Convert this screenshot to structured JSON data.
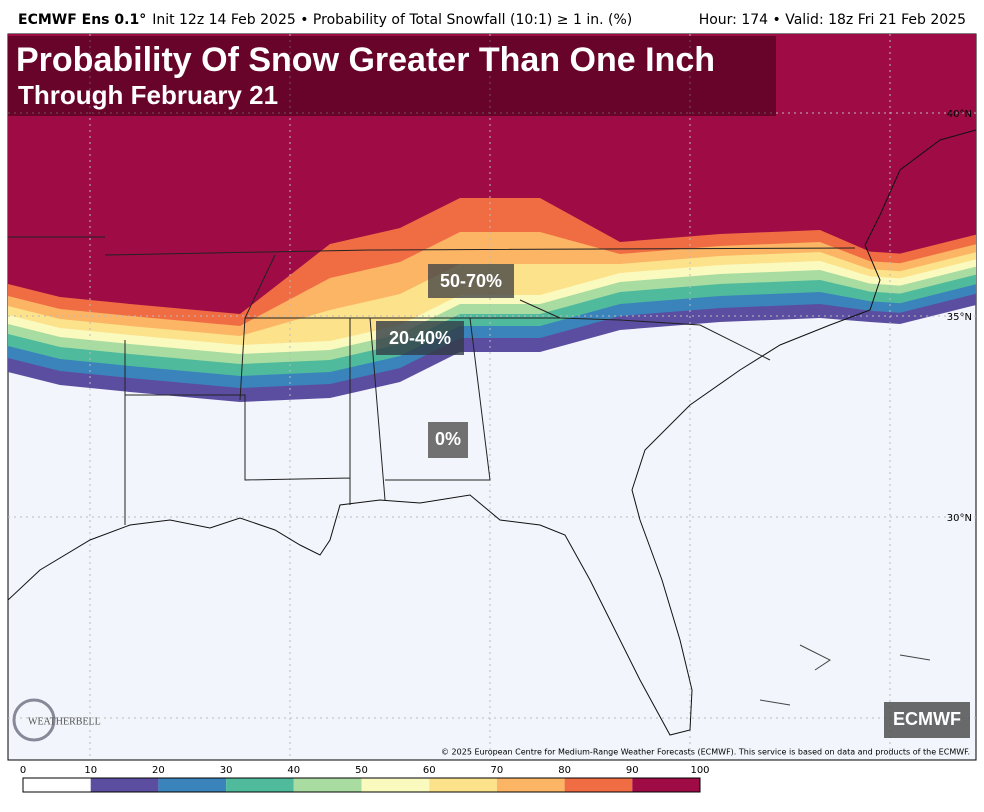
{
  "header": {
    "model": "ECMWF Ens 0.1°",
    "description": "Init 12z 14 Feb 2025 • Probability of Total Snowfall (10:1) ≥ 1 in. (%)",
    "valid": "Hour: 174 • Valid: 18z Fri 21 Feb 2025"
  },
  "title": "Probability Of Snow Greater Than One Inch",
  "subtitle": "Through February 21",
  "annotations": [
    "50-70%",
    "20-40%",
    "0%"
  ],
  "badge": "ECMWF",
  "logo": "WEATHERBELL",
  "latitude_labels": [
    "40°N",
    "35°N",
    "30°N"
  ],
  "copyright": "© 2025 European Centre for Medium-Range Weather Forecasts (ECMWF). This service is based on data and products of the ECMWF.",
  "colorbar": {
    "ticks": [
      0,
      10,
      20,
      30,
      40,
      50,
      60,
      70,
      80,
      90,
      100
    ],
    "colors": [
      "#ffffff",
      "#5b4ea1",
      "#3a84bb",
      "#4fbb9c",
      "#a9dca1",
      "#fafabe",
      "#fde28c",
      "#fbb564",
      "#f06d44",
      "#9e0b45"
    ]
  }
}
